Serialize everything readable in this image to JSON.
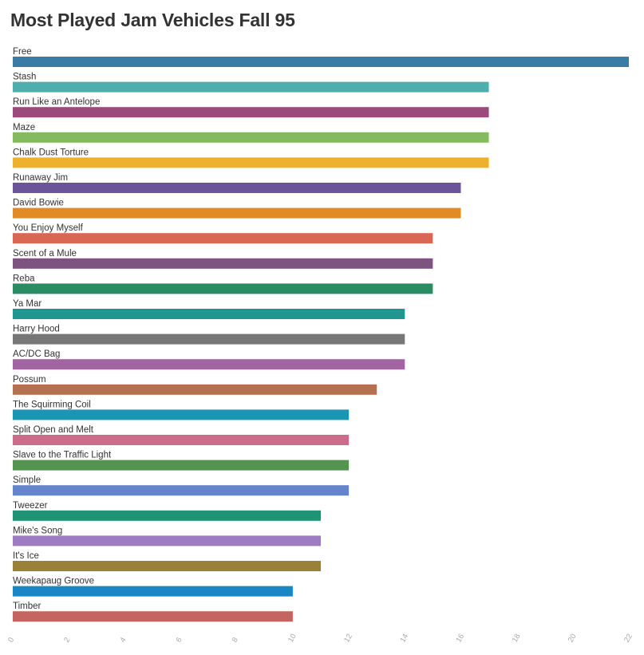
{
  "chart_data": {
    "type": "bar",
    "orientation": "horizontal",
    "title": "Most Played Jam Vehicles Fall 95",
    "xlabel": "",
    "ylabel": "",
    "xlim": [
      0,
      22
    ],
    "x_ticks": [
      "0",
      "2",
      "4",
      "6",
      "8",
      "10",
      "12",
      "14",
      "16",
      "18",
      "20",
      "22"
    ],
    "grid": false,
    "categories": [
      "Free",
      "Stash",
      "Run Like an Antelope",
      "Maze",
      "Chalk Dust Torture",
      "Runaway Jim",
      "David Bowie",
      "You Enjoy Myself",
      "Scent of a Mule",
      "Reba",
      "Ya Mar",
      "Harry Hood",
      "AC/DC Bag",
      "Possum",
      "The Squirming Coil",
      "Split Open and Melt",
      "Slave to the Traffic Light",
      "Simple",
      "Tweezer",
      "Mike's Song",
      "It's Ice",
      "Weekapaug Groove",
      "Timber"
    ],
    "values": [
      22,
      17,
      17,
      17,
      17,
      16,
      16,
      15,
      15,
      15,
      14,
      14,
      14,
      13,
      12,
      12,
      12,
      12,
      11,
      11,
      11,
      10,
      10
    ],
    "colors": [
      "#3a7ca5",
      "#4fadab",
      "#9b4a7b",
      "#86ba5e",
      "#ecb22e",
      "#6b5497",
      "#e28a26",
      "#d96754",
      "#7d5480",
      "#2a8c62",
      "#1f9690",
      "#777777",
      "#a265a2",
      "#b5704f",
      "#1a96b4",
      "#cd6b8a",
      "#559351",
      "#6484cb",
      "#1e9474",
      "#9d7cc1",
      "#9b8137",
      "#1b86c6",
      "#c4665f"
    ]
  }
}
